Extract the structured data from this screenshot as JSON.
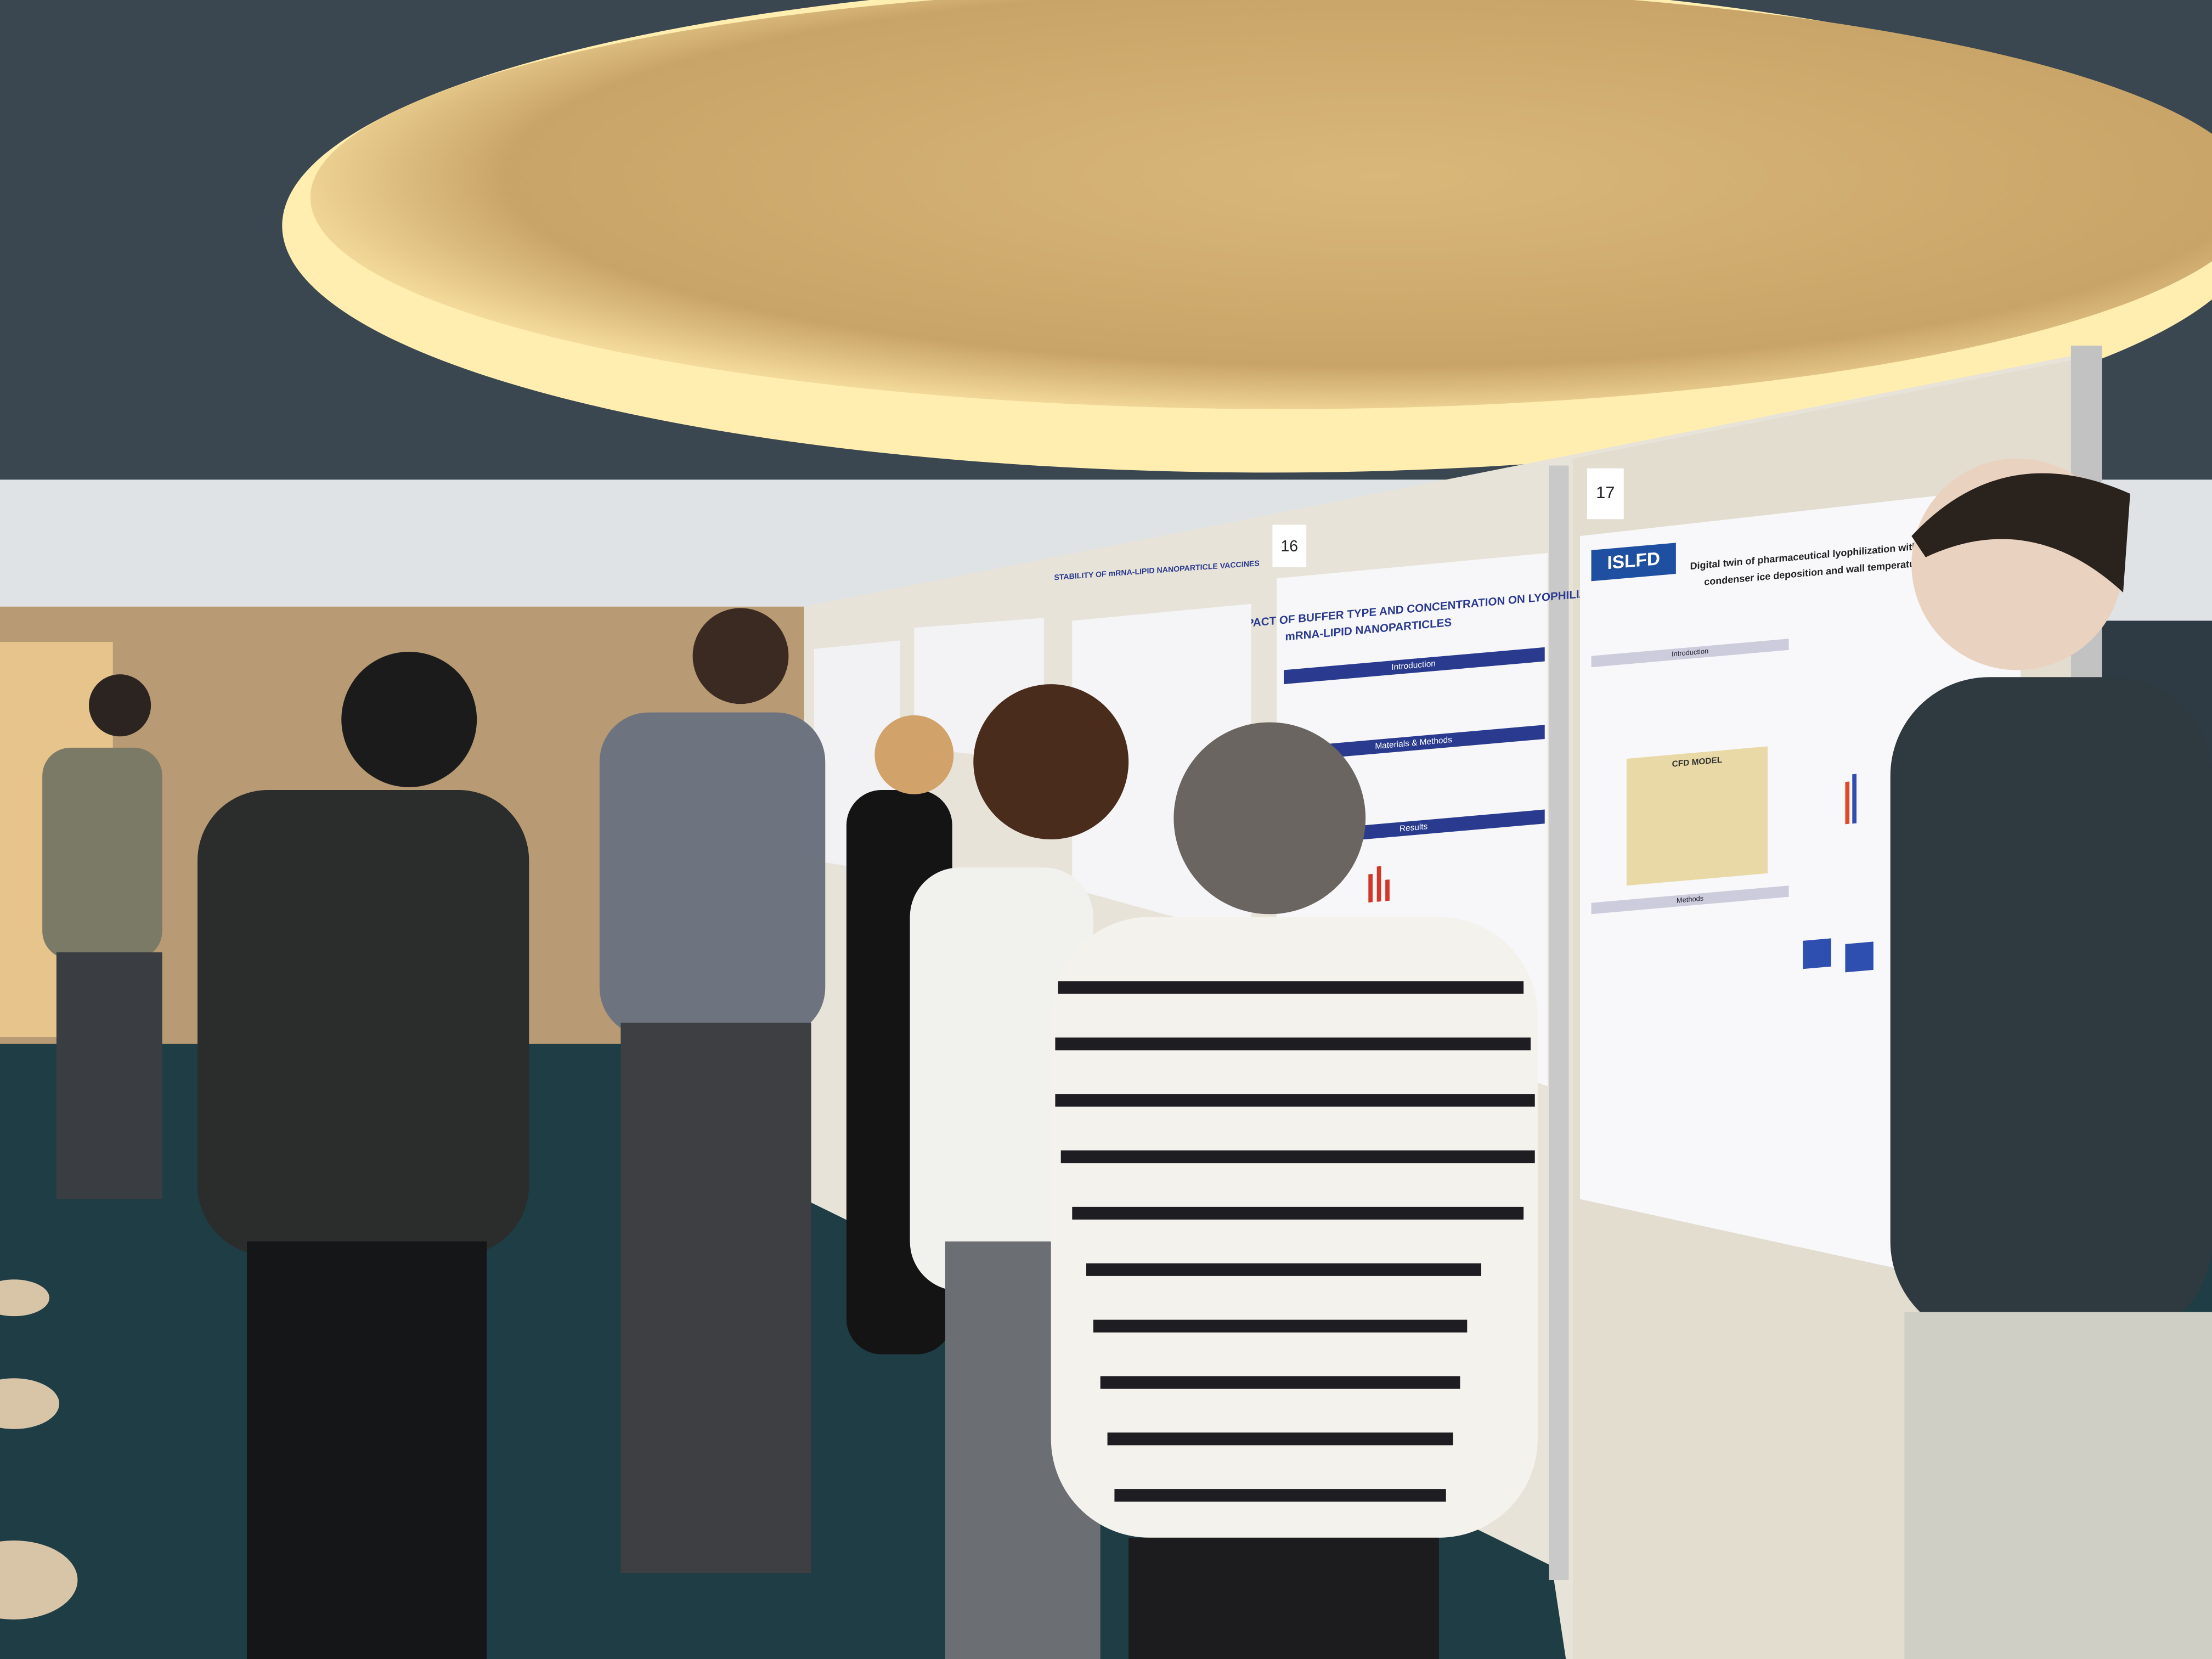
{
  "boards": [
    {
      "number": "16"
    },
    {
      "number": "17"
    }
  ],
  "posters": [
    {
      "title_line1": "IMPACT OF BUFFER TYPE AND CONCENTRATION ON LYOPHILIZED",
      "title_line2": "mRNA-LIPID NANOPARTICLES",
      "sections": [
        "Introduction",
        "Materials & Methods",
        "Results"
      ]
    },
    {
      "title": "STABILITY OF mRNA-LIPID NANOPARTICLE VACCINES"
    },
    {
      "logo": "ISLFD",
      "title_line1": "Digital twin of pharmaceutical lyophilization with latent-hea",
      "title_line2": "condenser ice deposition and wall temperature predi",
      "sections": [
        "Introduction",
        "Methods",
        "CFD MODEL"
      ]
    }
  ]
}
